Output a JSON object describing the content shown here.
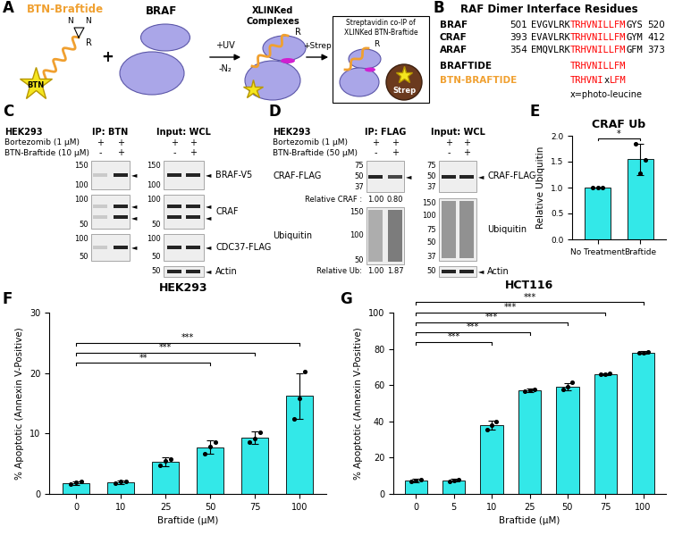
{
  "panels": {
    "A": {
      "panel_label": "A",
      "probe": "BTN-Braftide",
      "probe_color": "#f0a030",
      "btn": "BTN",
      "diazirine": [
        "N",
        "N"
      ],
      "r": "R",
      "braf": "BRAF",
      "plus": "+",
      "uv_step": [
        "+UV",
        "-N₂"
      ],
      "complex_label": "XLINKed\nComplexes",
      "strep_step": "+Strep",
      "box_label": "Streptavidin co-IP of\nXLINKed BTN-Braftide",
      "strep": "Strep"
    },
    "B": {
      "panel_label": "B",
      "title": "RAF Dimer Interface Residues",
      "rows": [
        {
          "name": "BRAF",
          "color": "black",
          "start": 501,
          "segments": [
            {
              "text": "EVGVLRK",
              "color": "black"
            },
            {
              "text": "TRHVNILLFM",
              "color": "red"
            },
            {
              "text": "GYS",
              "color": "black"
            }
          ],
          "end": 520
        },
        {
          "name": "CRAF",
          "color": "black",
          "start": 393,
          "segments": [
            {
              "text": "EVAVLRK",
              "color": "black"
            },
            {
              "text": "TRHVNILLFM",
              "color": "red"
            },
            {
              "text": "GYM",
              "color": "black"
            }
          ],
          "end": 412
        },
        {
          "name": "ARAF",
          "color": "black",
          "start": 354,
          "segments": [
            {
              "text": "EMQVLRK",
              "color": "black"
            },
            {
              "text": "TRHVNILLFM",
              "color": "red"
            },
            {
              "text": "GFM",
              "color": "black"
            }
          ],
          "end": 373
        },
        {
          "name": "BRAFTIDE",
          "color": "black",
          "start": null,
          "segments": [
            {
              "text": "TRHVNILLFM",
              "color": "red"
            }
          ],
          "end": null
        },
        {
          "name": "BTN-BRAFTIDE",
          "color": "#f0a030",
          "start": null,
          "segments": [
            {
              "text": "TRHVNI",
              "color": "red"
            },
            {
              "text": "x",
              "color": "black"
            },
            {
              "text": "LFM",
              "color": "red"
            }
          ],
          "end": null
        }
      ],
      "footnote": "x=photo-leucine"
    },
    "C": {
      "panel_label": "C",
      "cell_line": "HEK293",
      "treatments": [
        {
          "name": "Bortezomib (1 µM)",
          "ip": [
            "+",
            "+"
          ],
          "input": [
            "+",
            "+"
          ]
        },
        {
          "name": "BTN-Braftide (10 µM)",
          "ip": [
            "-",
            "+"
          ],
          "input": [
            "-",
            "+"
          ]
        }
      ],
      "ip_header": "IP: BTN",
      "input_header": "Input: WCL",
      "rows": [
        {
          "protein": "BRAF-V5",
          "ip_mw": [
            150,
            100
          ],
          "input_mw": [
            150,
            100
          ],
          "arrows": [
            "◄"
          ]
        },
        {
          "protein": "CRAF",
          "ip_mw": [
            100,
            50
          ],
          "input_mw": [
            100,
            50
          ],
          "arrows": [
            "◄",
            "◄"
          ]
        },
        {
          "protein": "CDC37-FLAG",
          "ip_mw": [
            100,
            50
          ],
          "input_mw": [
            100,
            50
          ],
          "arrows": [
            "◄"
          ]
        },
        {
          "protein": "Actin",
          "ip_mw": null,
          "input_mw": [
            50
          ],
          "arrows": [
            "◄"
          ]
        }
      ],
      "footer": "HEK293"
    },
    "D": {
      "panel_label": "D",
      "cell_line": "HEK293",
      "treatments": [
        {
          "name": "Bortezomib (1 µM)",
          "ip": [
            "+",
            "+"
          ],
          "input": [
            "+",
            "+"
          ]
        },
        {
          "name": "BTN-Braftide (50 µM)",
          "ip": [
            "-",
            "+"
          ],
          "input": [
            "-",
            "+"
          ]
        }
      ],
      "ip_header": "IP: FLAG",
      "input_header": "Input: WCL",
      "ip_rows": [
        {
          "protein": "CRAF-FLAG",
          "mw": [
            75,
            50,
            37
          ],
          "arrows": [
            "◄"
          ],
          "smear": false,
          "quant_label": "Relative CRAF :",
          "quant": [
            "1.00",
            "0.80"
          ]
        },
        {
          "protein": "Ubiquitin",
          "mw": [
            150,
            100,
            50
          ],
          "arrows": [],
          "smear": true,
          "quant_label": "Relative Ub:",
          "quant": [
            "1.00",
            "1.87"
          ]
        }
      ],
      "input_rows": [
        {
          "protein": "CRAF-FLAG",
          "mw": [
            75,
            50,
            37
          ],
          "arrows": [
            "◄"
          ],
          "smear": false
        },
        {
          "protein": "Ubiquitin",
          "mw": [
            150,
            100,
            75,
            50,
            37
          ],
          "arrows": [],
          "smear": true
        },
        {
          "protein": "Actin",
          "mw": [
            50
          ],
          "arrows": [
            "◄"
          ],
          "smear": false
        }
      ]
    }
  },
  "chart_data": [
    {
      "type": "bar",
      "panel_label": "E",
      "title": "CRAF Ub",
      "ylabel": "Relative Ubiquitin",
      "categories": [
        "No Treatment",
        "Braftide"
      ],
      "values": [
        1.0,
        1.55
      ],
      "errors": [
        0.0,
        0.3
      ],
      "points": [
        [
          1.0,
          1.0,
          1.0
        ],
        [
          1.85,
          1.27,
          1.53
        ]
      ],
      "color": "#33e8e8",
      "ylim": [
        0,
        2.0
      ],
      "yticks": [
        {
          "value": 0,
          "label": "0.0"
        },
        {
          "value": 0.5,
          "label": "0.5"
        },
        {
          "value": 1.0,
          "label": "1.0"
        },
        {
          "value": 1.5,
          "label": "1.5"
        },
        {
          "value": 2.0,
          "label": "2.0"
        }
      ],
      "significance": [
        {
          "pair": [
            "No Treatment",
            "Braftide"
          ],
          "label": "*"
        }
      ]
    },
    {
      "type": "bar",
      "panel_label": "F",
      "xlabel": "Braftide (µM)",
      "ylabel": "% Apoptotic (Annexin V-Positive)",
      "categories": [
        "0",
        "10",
        "25",
        "50",
        "75",
        "100"
      ],
      "values": [
        1.8,
        1.9,
        5.3,
        7.7,
        9.3,
        16.2
      ],
      "errors": [
        0.3,
        0.3,
        0.7,
        1.1,
        1.0,
        3.8
      ],
      "points": [
        [
          1.6,
          1.9,
          2.0
        ],
        [
          1.7,
          2.0,
          2.0
        ],
        [
          4.8,
          5.4,
          5.8
        ],
        [
          6.6,
          7.9,
          8.6
        ],
        [
          8.5,
          9.2,
          10.2
        ],
        [
          12.4,
          15.8,
          20.2
        ]
      ],
      "color": "#33e8e8",
      "ylim": [
        0,
        30
      ],
      "yticks": [
        0,
        10,
        20,
        30
      ],
      "significance": [
        {
          "pair": [
            "0",
            "50"
          ],
          "label": "**"
        },
        {
          "pair": [
            "0",
            "75"
          ],
          "label": "***"
        },
        {
          "pair": [
            "0",
            "100"
          ],
          "label": "***"
        }
      ]
    },
    {
      "type": "bar",
      "panel_label": "G",
      "title": "HCT116",
      "xlabel": "Braftide (µM)",
      "ylabel": "% Apoptotic (Annexin V-Positive)",
      "categories": [
        "0",
        "5",
        "10",
        "25",
        "50",
        "75",
        "100"
      ],
      "values": [
        7.5,
        7.5,
        37.8,
        57.2,
        59.3,
        66.2,
        78.0
      ],
      "errors": [
        1.0,
        0.7,
        2.5,
        0.8,
        2.0,
        0.5,
        0.7
      ],
      "points": [
        [
          6.9,
          7.6,
          8.0
        ],
        [
          7.1,
          7.6,
          7.9
        ],
        [
          35.5,
          37.8,
          40.0
        ],
        [
          56.8,
          57.2,
          57.5
        ],
        [
          57.5,
          59.0,
          61.5
        ],
        [
          65.9,
          66.2,
          66.5
        ],
        [
          77.7,
          78.0,
          78.4
        ]
      ],
      "color": "#33e8e8",
      "ylim": [
        0,
        100
      ],
      "yticks": [
        0,
        20,
        40,
        60,
        80,
        100
      ],
      "significance": [
        {
          "pair": [
            "0",
            "10"
          ],
          "label": "***"
        },
        {
          "pair": [
            "0",
            "25"
          ],
          "label": "***"
        },
        {
          "pair": [
            "0",
            "50"
          ],
          "label": "***"
        },
        {
          "pair": [
            "0",
            "75"
          ],
          "label": "***"
        },
        {
          "pair": [
            "0",
            "100"
          ],
          "label": "***"
        }
      ]
    }
  ]
}
